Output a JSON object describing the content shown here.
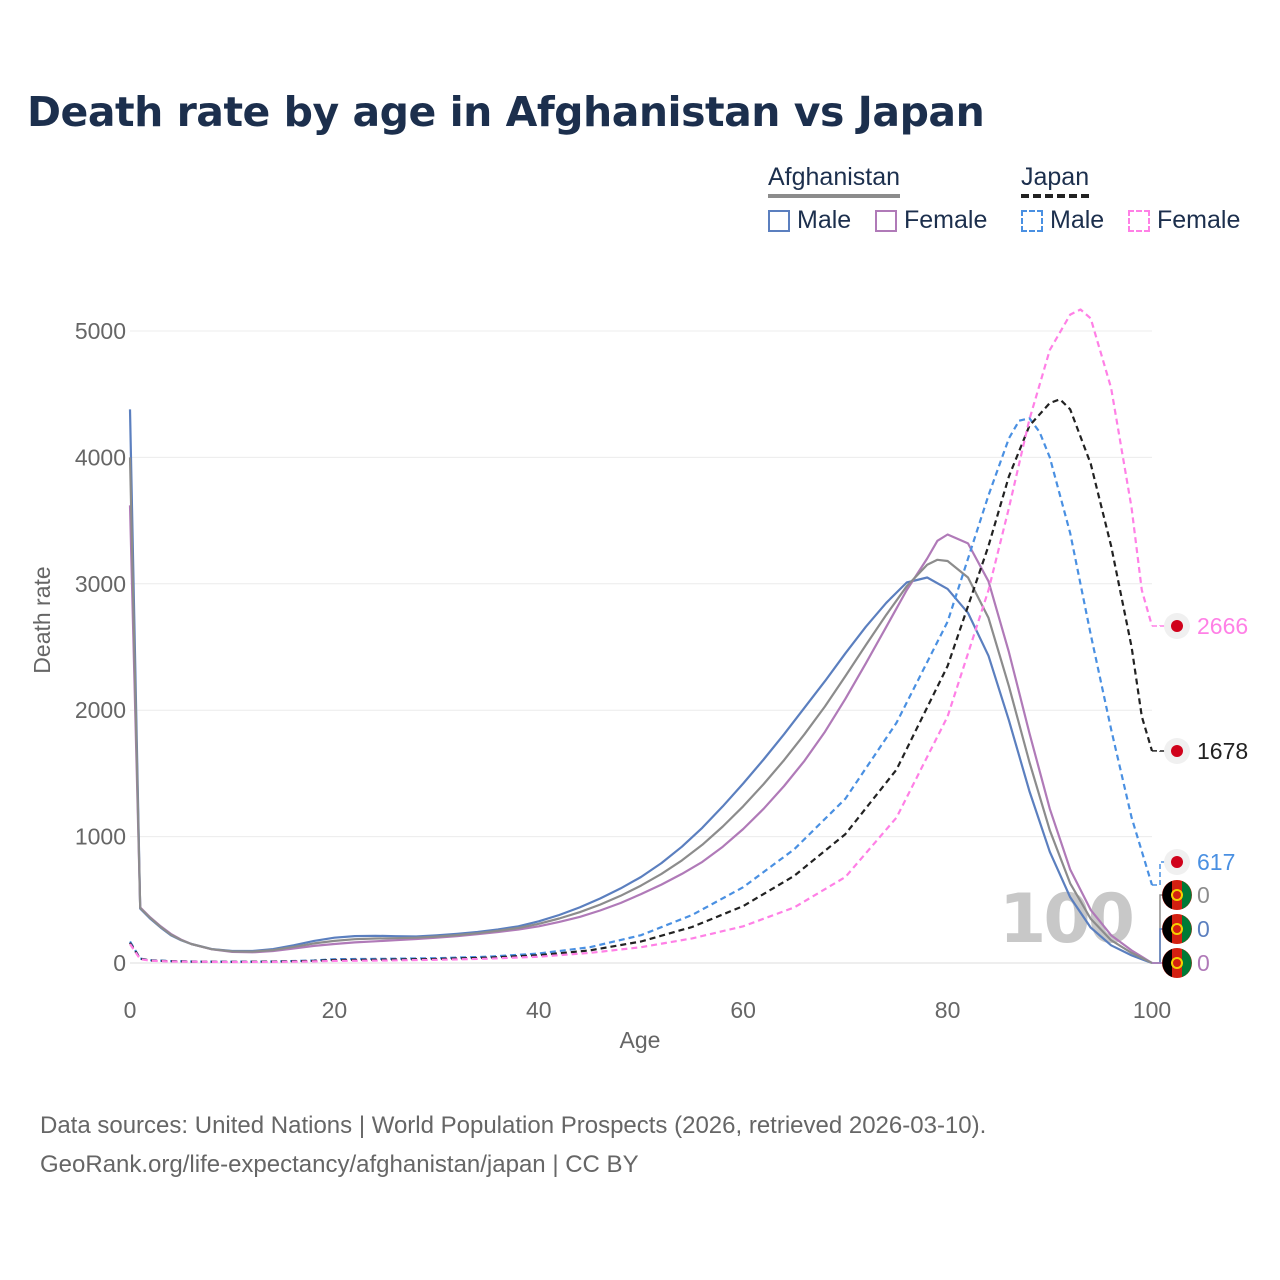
{
  "title": "Death rate by age in Afghanistan vs Japan",
  "legend": {
    "groups": [
      {
        "label": "Afghanistan",
        "items": [
          {
            "label": "Male",
            "color": "#5b7fbf",
            "dashed": false
          },
          {
            "label": "Female",
            "color": "#b07ab8",
            "dashed": false
          }
        ]
      },
      {
        "label": "Japan",
        "items": [
          {
            "label": "Male",
            "color": "#4a90e2",
            "dashed": true
          },
          {
            "label": "Female",
            "color": "#ff80e6",
            "dashed": true
          }
        ]
      }
    ]
  },
  "chart_data": {
    "type": "line",
    "title": "Death rate by age in Afghanistan vs Japan",
    "xlabel": "Age",
    "ylabel": "Death rate",
    "xlim": [
      0,
      100
    ],
    "ylim": [
      0,
      5000
    ],
    "xticks": [
      0,
      20,
      40,
      60,
      80,
      100
    ],
    "yticks": [
      0,
      1000,
      2000,
      3000,
      4000,
      5000
    ],
    "grid": true,
    "year_watermark": "100",
    "series": [
      {
        "name": "Afghanistan Male",
        "color": "#5b7fbf",
        "dashed": false,
        "end_label": "0",
        "end_label_color": "#5b7fbf",
        "flag": "afghanistan",
        "points": [
          [
            0,
            4380
          ],
          [
            1,
            430
          ],
          [
            2,
            350
          ],
          [
            3,
            280
          ],
          [
            4,
            220
          ],
          [
            5,
            180
          ],
          [
            6,
            150
          ],
          [
            8,
            110
          ],
          [
            10,
            95
          ],
          [
            12,
            95
          ],
          [
            14,
            110
          ],
          [
            16,
            140
          ],
          [
            18,
            175
          ],
          [
            20,
            200
          ],
          [
            22,
            213
          ],
          [
            24,
            215
          ],
          [
            26,
            212
          ],
          [
            28,
            210
          ],
          [
            30,
            218
          ],
          [
            32,
            230
          ],
          [
            34,
            245
          ],
          [
            36,
            265
          ],
          [
            38,
            290
          ],
          [
            40,
            330
          ],
          [
            42,
            380
          ],
          [
            44,
            440
          ],
          [
            46,
            510
          ],
          [
            48,
            590
          ],
          [
            50,
            680
          ],
          [
            52,
            790
          ],
          [
            54,
            920
          ],
          [
            56,
            1070
          ],
          [
            58,
            1240
          ],
          [
            60,
            1420
          ],
          [
            62,
            1610
          ],
          [
            64,
            1810
          ],
          [
            66,
            2020
          ],
          [
            68,
            2230
          ],
          [
            70,
            2450
          ],
          [
            72,
            2660
          ],
          [
            74,
            2850
          ],
          [
            76,
            3010
          ],
          [
            78,
            3050
          ],
          [
            80,
            2960
          ],
          [
            82,
            2770
          ],
          [
            84,
            2430
          ],
          [
            86,
            1920
          ],
          [
            88,
            1360
          ],
          [
            90,
            880
          ],
          [
            92,
            520
          ],
          [
            94,
            280
          ],
          [
            96,
            140
          ],
          [
            98,
            60
          ],
          [
            100,
            0
          ]
        ]
      },
      {
        "name": "Afghanistan Female",
        "color": "#b07ab8",
        "dashed": false,
        "end_label": "0",
        "end_label_color": "#b07ab8",
        "flag": "afghanistan",
        "points": [
          [
            0,
            3620
          ],
          [
            1,
            440
          ],
          [
            2,
            360
          ],
          [
            3,
            290
          ],
          [
            4,
            230
          ],
          [
            5,
            185
          ],
          [
            6,
            150
          ],
          [
            8,
            108
          ],
          [
            10,
            88
          ],
          [
            12,
            85
          ],
          [
            14,
            95
          ],
          [
            16,
            115
          ],
          [
            18,
            135
          ],
          [
            20,
            150
          ],
          [
            22,
            163
          ],
          [
            24,
            172
          ],
          [
            26,
            180
          ],
          [
            28,
            190
          ],
          [
            30,
            200
          ],
          [
            32,
            213
          ],
          [
            34,
            228
          ],
          [
            36,
            245
          ],
          [
            38,
            265
          ],
          [
            40,
            290
          ],
          [
            42,
            325
          ],
          [
            44,
            365
          ],
          [
            46,
            415
          ],
          [
            48,
            475
          ],
          [
            50,
            545
          ],
          [
            52,
            620
          ],
          [
            54,
            705
          ],
          [
            56,
            800
          ],
          [
            58,
            920
          ],
          [
            60,
            1060
          ],
          [
            62,
            1220
          ],
          [
            64,
            1400
          ],
          [
            66,
            1600
          ],
          [
            68,
            1830
          ],
          [
            70,
            2090
          ],
          [
            72,
            2370
          ],
          [
            74,
            2660
          ],
          [
            76,
            2950
          ],
          [
            78,
            3200
          ],
          [
            79,
            3340
          ],
          [
            80,
            3390
          ],
          [
            82,
            3320
          ],
          [
            84,
            3020
          ],
          [
            86,
            2460
          ],
          [
            88,
            1820
          ],
          [
            90,
            1220
          ],
          [
            92,
            740
          ],
          [
            94,
            420
          ],
          [
            96,
            220
          ],
          [
            98,
            100
          ],
          [
            100,
            0
          ]
        ]
      },
      {
        "name": "Afghanistan Total",
        "color": "#8c8c8c",
        "dashed": false,
        "end_label": "0",
        "end_label_color": "#8c8c8c",
        "flag": "afghanistan",
        "points": [
          [
            0,
            4000
          ],
          [
            1,
            435
          ],
          [
            2,
            355
          ],
          [
            3,
            285
          ],
          [
            4,
            225
          ],
          [
            5,
            182
          ],
          [
            6,
            150
          ],
          [
            8,
            109
          ],
          [
            10,
            92
          ],
          [
            12,
            90
          ],
          [
            14,
            102
          ],
          [
            16,
            127
          ],
          [
            18,
            155
          ],
          [
            20,
            175
          ],
          [
            22,
            188
          ],
          [
            24,
            194
          ],
          [
            26,
            196
          ],
          [
            28,
            200
          ],
          [
            30,
            209
          ],
          [
            32,
            221
          ],
          [
            34,
            236
          ],
          [
            36,
            255
          ],
          [
            38,
            277
          ],
          [
            40,
            310
          ],
          [
            42,
            352
          ],
          [
            44,
            402
          ],
          [
            46,
            462
          ],
          [
            48,
            532
          ],
          [
            50,
            612
          ],
          [
            52,
            705
          ],
          [
            54,
            812
          ],
          [
            56,
            935
          ],
          [
            58,
            1080
          ],
          [
            60,
            1240
          ],
          [
            62,
            1415
          ],
          [
            64,
            1605
          ],
          [
            66,
            1810
          ],
          [
            68,
            2030
          ],
          [
            70,
            2270
          ],
          [
            72,
            2515
          ],
          [
            74,
            2755
          ],
          [
            76,
            2980
          ],
          [
            78,
            3150
          ],
          [
            79,
            3190
          ],
          [
            80,
            3180
          ],
          [
            82,
            3050
          ],
          [
            84,
            2730
          ],
          [
            86,
            2190
          ],
          [
            88,
            1590
          ],
          [
            90,
            1050
          ],
          [
            92,
            630
          ],
          [
            94,
            350
          ],
          [
            96,
            180
          ],
          [
            98,
            80
          ],
          [
            100,
            0
          ]
        ]
      },
      {
        "name": "Japan Male",
        "color": "#4a90e2",
        "dashed": true,
        "end_label": "617",
        "end_label_color": "#4a90e2",
        "flag": "japan",
        "points": [
          [
            0,
            170
          ],
          [
            1,
            35
          ],
          [
            2,
            22
          ],
          [
            4,
            15
          ],
          [
            6,
            12
          ],
          [
            10,
            10
          ],
          [
            14,
            12
          ],
          [
            18,
            20
          ],
          [
            20,
            30
          ],
          [
            25,
            33
          ],
          [
            30,
            38
          ],
          [
            35,
            50
          ],
          [
            40,
            75
          ],
          [
            45,
            125
          ],
          [
            50,
            220
          ],
          [
            55,
            380
          ],
          [
            60,
            600
          ],
          [
            65,
            900
          ],
          [
            70,
            1300
          ],
          [
            75,
            1900
          ],
          [
            80,
            2700
          ],
          [
            84,
            3700
          ],
          [
            86,
            4150
          ],
          [
            87,
            4290
          ],
          [
            88,
            4310
          ],
          [
            89,
            4200
          ],
          [
            90,
            4000
          ],
          [
            92,
            3400
          ],
          [
            94,
            2600
          ],
          [
            96,
            1850
          ],
          [
            98,
            1150
          ],
          [
            100,
            617
          ]
        ]
      },
      {
        "name": "Japan Total",
        "color": "#222222",
        "dashed": true,
        "end_label": "1678",
        "end_label_color": "#222222",
        "flag": "japan",
        "points": [
          [
            0,
            160
          ],
          [
            1,
            33
          ],
          [
            2,
            20
          ],
          [
            4,
            14
          ],
          [
            6,
            11
          ],
          [
            10,
            9
          ],
          [
            14,
            11
          ],
          [
            18,
            17
          ],
          [
            20,
            24
          ],
          [
            25,
            27
          ],
          [
            30,
            32
          ],
          [
            35,
            42
          ],
          [
            40,
            62
          ],
          [
            45,
            100
          ],
          [
            50,
            170
          ],
          [
            55,
            285
          ],
          [
            60,
            450
          ],
          [
            65,
            690
          ],
          [
            70,
            1020
          ],
          [
            75,
            1530
          ],
          [
            80,
            2350
          ],
          [
            84,
            3300
          ],
          [
            86,
            3850
          ],
          [
            88,
            4250
          ],
          [
            90,
            4430
          ],
          [
            91,
            4460
          ],
          [
            92,
            4380
          ],
          [
            94,
            3950
          ],
          [
            96,
            3300
          ],
          [
            98,
            2500
          ],
          [
            99,
            1950
          ],
          [
            100,
            1678
          ]
        ]
      },
      {
        "name": "Japan Female",
        "color": "#ff80e6",
        "dashed": true,
        "end_label": "2666",
        "end_label_color": "#ff80e6",
        "flag": "japan",
        "points": [
          [
            0,
            150
          ],
          [
            1,
            30
          ],
          [
            2,
            18
          ],
          [
            4,
            12
          ],
          [
            6,
            10
          ],
          [
            10,
            8
          ],
          [
            14,
            9
          ],
          [
            18,
            13
          ],
          [
            20,
            17
          ],
          [
            25,
            20
          ],
          [
            30,
            25
          ],
          [
            35,
            34
          ],
          [
            40,
            50
          ],
          [
            45,
            80
          ],
          [
            50,
            125
          ],
          [
            55,
            195
          ],
          [
            60,
            290
          ],
          [
            65,
            440
          ],
          [
            70,
            680
          ],
          [
            75,
            1150
          ],
          [
            80,
            1950
          ],
          [
            84,
            2950
          ],
          [
            86,
            3600
          ],
          [
            88,
            4300
          ],
          [
            90,
            4850
          ],
          [
            92,
            5130
          ],
          [
            93,
            5170
          ],
          [
            94,
            5100
          ],
          [
            96,
            4550
          ],
          [
            98,
            3600
          ],
          [
            99,
            2950
          ],
          [
            100,
            2666
          ]
        ]
      }
    ]
  },
  "footer": {
    "line1": "Data sources: United Nations | World Population Prospects (2026, retrieved 2026-03-10).",
    "line2": "GeoRank.org/life-expectancy/afghanistan/japan | CC BY"
  }
}
